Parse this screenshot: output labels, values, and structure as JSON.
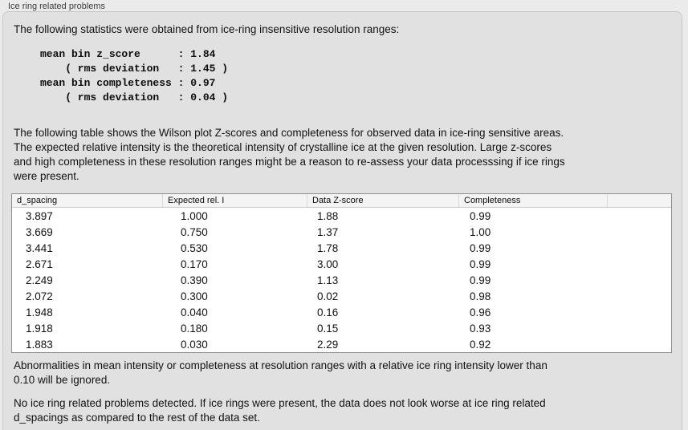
{
  "panel": {
    "title": "Ice ring related problems",
    "intro": "The following statistics were obtained from ice-ring insensitive resolution ranges:",
    "stats_block": "mean bin z_score      : 1.84\n    ( rms deviation   : 1.45 )\nmean bin completeness : 0.97\n    ( rms deviation   : 0.04 )",
    "stats": {
      "mean_bin_z_score": "1.84",
      "z_score_rms_deviation": "1.45",
      "mean_bin_completeness": "0.97",
      "completeness_rms_deviation": "0.04"
    },
    "description": "The following table shows the Wilson plot Z-scores and completeness for observed data in ice-ring sensitive areas.\nThe expected relative intensity is the theoretical intensity of crystalline ice at the given resolution. Large z-scores\nand high completeness in these resolution ranges might be a reason to re-assess your data processsing if ice rings\nwere present.",
    "note": "Abnormalities in mean intensity or completeness at resolution ranges with a relative ice ring intensity lower than\n0.10 will be ignored.",
    "conclusion": "No ice ring related problems detected. If ice rings were present, the data does not look worse at ice ring related\nd_spacings as compared to the rest of the data set."
  },
  "table": {
    "columns": [
      "d_spacing",
      "Expected rel. I",
      "Data Z-score",
      "Completeness"
    ],
    "rows": [
      [
        "3.897",
        "1.000",
        "1.88",
        "0.99"
      ],
      [
        "3.669",
        "0.750",
        "1.37",
        "1.00"
      ],
      [
        "3.441",
        "0.530",
        "1.78",
        "0.99"
      ],
      [
        "2.671",
        "0.170",
        "3.00",
        "0.99"
      ],
      [
        "2.249",
        "0.390",
        "1.13",
        "0.99"
      ],
      [
        "2.072",
        "0.300",
        "0.02",
        "0.98"
      ],
      [
        "1.948",
        "0.040",
        "0.16",
        "0.96"
      ],
      [
        "1.918",
        "0.180",
        "0.15",
        "0.93"
      ],
      [
        "1.883",
        "0.030",
        "2.29",
        "0.92"
      ]
    ]
  }
}
